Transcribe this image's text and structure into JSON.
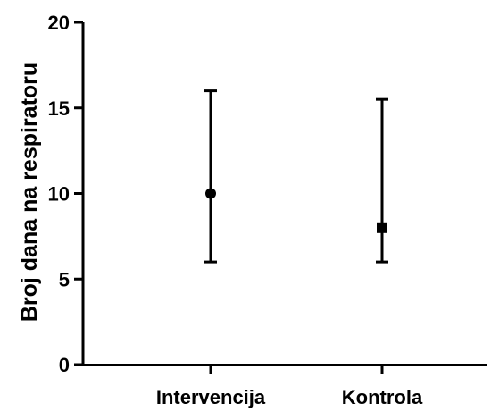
{
  "chart_data": {
    "type": "scatter",
    "ylabel": "Broj dana na respiratoru",
    "xlabel": "",
    "ylim": [
      0,
      20
    ],
    "yticks": [
      0,
      5,
      10,
      15,
      20
    ],
    "categories": [
      "Intervencija",
      "Kontrola"
    ],
    "series": [
      {
        "category": "Intervencija",
        "marker": "circle",
        "value": 10,
        "error_low": 6,
        "error_high": 16
      },
      {
        "category": "Kontrola",
        "marker": "square",
        "value": 8,
        "error_low": 6,
        "error_high": 15.5
      }
    ],
    "grid": false,
    "colors": {
      "mark": "#000000",
      "axis": "#000000"
    }
  }
}
